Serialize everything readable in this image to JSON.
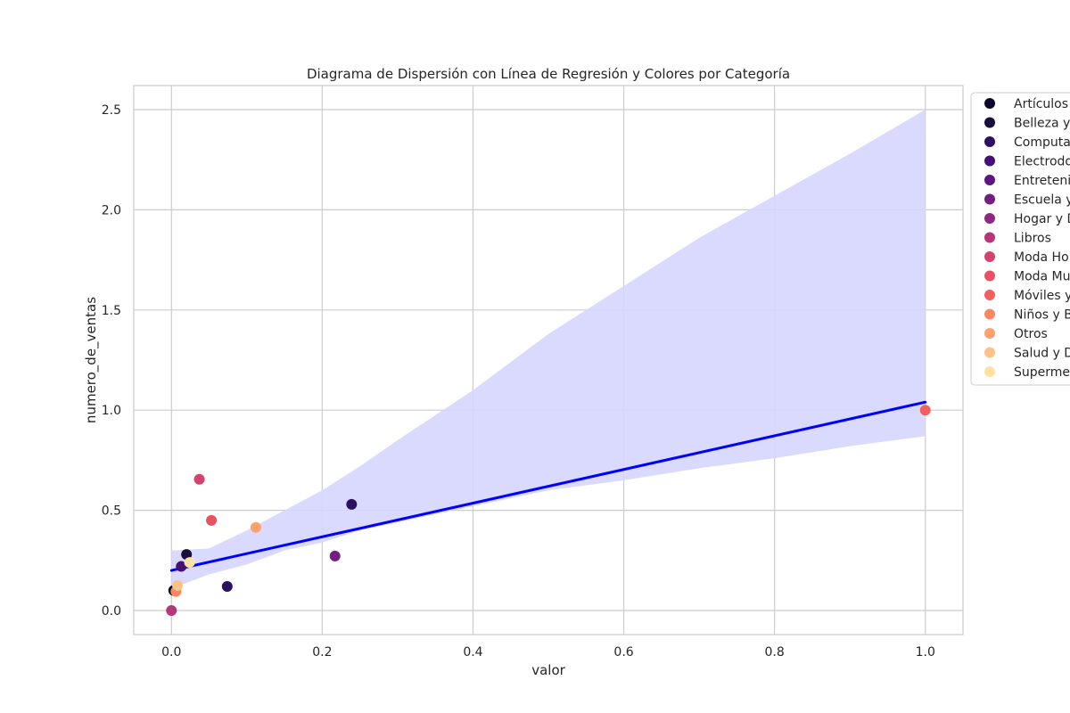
{
  "chart_data": {
    "type": "scatter",
    "title": "Diagrama de Dispersión con Línea de Regresión y Colores por Categoría",
    "xlabel": "valor",
    "ylabel": "numero_de_ventas",
    "xlim": [
      -0.05,
      1.05
    ],
    "ylim": [
      -0.12,
      2.62
    ],
    "x_ticks": [
      0.0,
      0.2,
      0.4,
      0.6,
      0.8,
      1.0
    ],
    "x_tick_labels": [
      "0.0",
      "0.2",
      "0.4",
      "0.6",
      "0.8",
      "1.0"
    ],
    "y_ticks": [
      0.0,
      0.5,
      1.0,
      1.5,
      2.0,
      2.5
    ],
    "y_tick_labels": [
      "0.0",
      "0.5",
      "1.0",
      "1.5",
      "2.0",
      "2.5"
    ],
    "grid": true,
    "legend_position": "outside right, top",
    "regression": {
      "color": "#0000ff",
      "band_color": "#d6d6ff",
      "line": [
        [
          0.0,
          0.2
        ],
        [
          1.0,
          1.04
        ]
      ],
      "band_upper": [
        [
          0.0,
          0.3
        ],
        [
          0.05,
          0.31
        ],
        [
          0.1,
          0.4
        ],
        [
          0.15,
          0.5
        ],
        [
          0.2,
          0.6
        ],
        [
          0.25,
          0.72
        ],
        [
          0.3,
          0.85
        ],
        [
          0.4,
          1.1
        ],
        [
          0.5,
          1.38
        ],
        [
          0.6,
          1.62
        ],
        [
          0.7,
          1.86
        ],
        [
          0.8,
          2.07
        ],
        [
          0.9,
          2.28
        ],
        [
          1.0,
          2.5
        ]
      ],
      "band_lower": [
        [
          0.0,
          0.11
        ],
        [
          0.05,
          0.18
        ],
        [
          0.1,
          0.23
        ],
        [
          0.15,
          0.3
        ],
        [
          0.2,
          0.34
        ],
        [
          0.25,
          0.4
        ],
        [
          0.3,
          0.44
        ],
        [
          0.4,
          0.52
        ],
        [
          0.5,
          0.6
        ],
        [
          0.6,
          0.65
        ],
        [
          0.7,
          0.71
        ],
        [
          0.8,
          0.76
        ],
        [
          0.9,
          0.82
        ],
        [
          1.0,
          0.87
        ]
      ]
    },
    "categories": [
      {
        "name": "Artículos",
        "color": "#0d0829"
      },
      {
        "name": "Belleza y",
        "color": "#180f3d"
      },
      {
        "name": "Computac",
        "color": "#2c115f"
      },
      {
        "name": "Electrodo",
        "color": "#440f76"
      },
      {
        "name": "Entretenin",
        "color": "#5c167f"
      },
      {
        "name": "Escuela y",
        "color": "#721f81"
      },
      {
        "name": "Hogar y D",
        "color": "#8c2981"
      },
      {
        "name": "Libros",
        "color": "#b5367a"
      },
      {
        "name": "Moda Ho",
        "color": "#d3436e"
      },
      {
        "name": "Moda Mu",
        "color": "#e75263"
      },
      {
        "name": "Móviles y",
        "color": "#f1605d"
      },
      {
        "name": "Niños y B",
        "color": "#fb8761"
      },
      {
        "name": "Otros",
        "color": "#fea16e"
      },
      {
        "name": "Salud y D",
        "color": "#fec287"
      },
      {
        "name": "Supermer",
        "color": "#fde2a0"
      }
    ],
    "points": [
      {
        "x": 0.0,
        "y": 0.0,
        "color": "#b5367a"
      },
      {
        "x": 0.003,
        "y": 0.1,
        "color": "#0d0829"
      },
      {
        "x": 0.006,
        "y": 0.095,
        "color": "#fb8761"
      },
      {
        "x": 0.008,
        "y": 0.125,
        "color": "#fec287"
      },
      {
        "x": 0.013,
        "y": 0.22,
        "color": "#440f76"
      },
      {
        "x": 0.02,
        "y": 0.28,
        "color": "#180f3d"
      },
      {
        "x": 0.024,
        "y": 0.24,
        "color": "#fde2a0"
      },
      {
        "x": 0.037,
        "y": 0.655,
        "color": "#d3436e"
      },
      {
        "x": 0.053,
        "y": 0.45,
        "color": "#e75263"
      },
      {
        "x": 0.074,
        "y": 0.12,
        "color": "#2c115f"
      },
      {
        "x": 0.112,
        "y": 0.415,
        "color": "#fea16e"
      },
      {
        "x": 0.217,
        "y": 0.272,
        "color": "#721f81"
      },
      {
        "x": 0.239,
        "y": 0.53,
        "color": "#2c115f"
      },
      {
        "x": 1.0,
        "y": 1.0,
        "color": "#f1605d"
      }
    ]
  }
}
